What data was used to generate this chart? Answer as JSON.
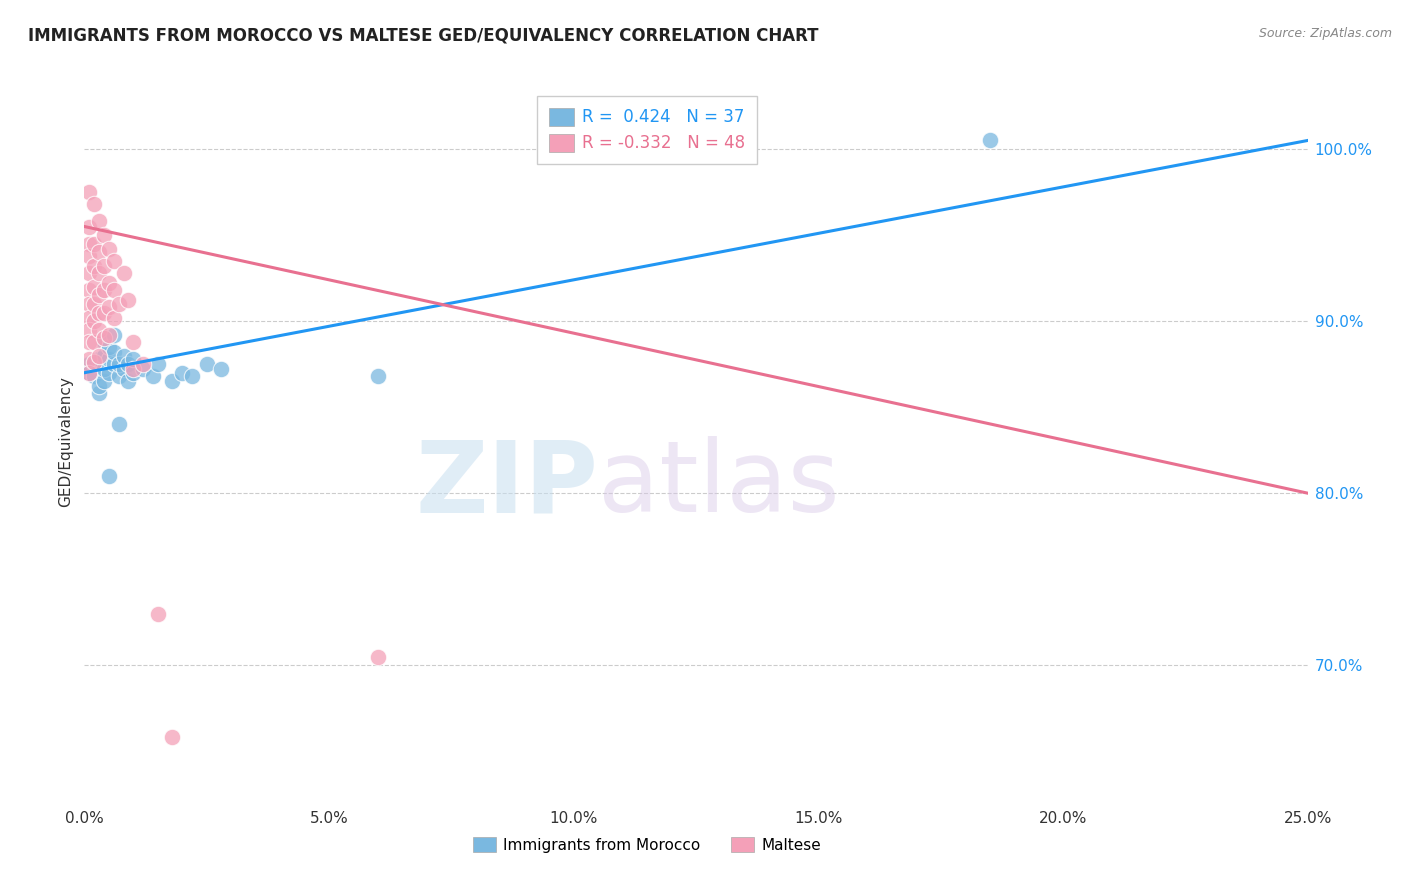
{
  "title": "IMMIGRANTS FROM MOROCCO VS MALTESE GED/EQUIVALENCY CORRELATION CHART",
  "source": "Source: ZipAtlas.com",
  "ylabel": "GED/Equivalency",
  "legend_label1": "Immigrants from Morocco",
  "legend_label2": "Maltese",
  "R1": 0.424,
  "N1": 37,
  "R2": -0.332,
  "N2": 48,
  "xlim": [
    0.0,
    0.25
  ],
  "ylim": [
    0.62,
    1.04
  ],
  "yticks": [
    0.7,
    0.8,
    0.9,
    1.0
  ],
  "xticks": [
    0.0,
    0.05,
    0.1,
    0.15,
    0.2,
    0.25
  ],
  "color_blue": "#7ab8e0",
  "color_pink": "#f4a0b8",
  "color_line_blue": "#2196F3",
  "color_line_pink": "#e87090",
  "watermark_zip": "ZIP",
  "watermark_atlas": "atlas",
  "blue_dots": [
    [
      0.001,
      0.87
    ],
    [
      0.001,
      0.875
    ],
    [
      0.002,
      0.868
    ],
    [
      0.002,
      0.875
    ],
    [
      0.003,
      0.858
    ],
    [
      0.003,
      0.862
    ],
    [
      0.003,
      0.878
    ],
    [
      0.004,
      0.865
    ],
    [
      0.004,
      0.872
    ],
    [
      0.004,
      0.88
    ],
    [
      0.004,
      0.888
    ],
    [
      0.005,
      0.87
    ],
    [
      0.005,
      0.878
    ],
    [
      0.005,
      0.885
    ],
    [
      0.005,
      0.81
    ],
    [
      0.006,
      0.875
    ],
    [
      0.006,
      0.882
    ],
    [
      0.006,
      0.892
    ],
    [
      0.007,
      0.868
    ],
    [
      0.007,
      0.875
    ],
    [
      0.008,
      0.872
    ],
    [
      0.008,
      0.88
    ],
    [
      0.009,
      0.865
    ],
    [
      0.009,
      0.875
    ],
    [
      0.01,
      0.87
    ],
    [
      0.01,
      0.878
    ],
    [
      0.012,
      0.872
    ],
    [
      0.014,
      0.868
    ],
    [
      0.015,
      0.875
    ],
    [
      0.018,
      0.865
    ],
    [
      0.02,
      0.87
    ],
    [
      0.022,
      0.868
    ],
    [
      0.025,
      0.875
    ],
    [
      0.028,
      0.872
    ],
    [
      0.06,
      0.868
    ],
    [
      0.185,
      1.005
    ],
    [
      0.007,
      0.84
    ]
  ],
  "pink_dots": [
    [
      0.001,
      0.975
    ],
    [
      0.001,
      0.955
    ],
    [
      0.001,
      0.945
    ],
    [
      0.001,
      0.938
    ],
    [
      0.001,
      0.928
    ],
    [
      0.001,
      0.918
    ],
    [
      0.001,
      0.91
    ],
    [
      0.001,
      0.902
    ],
    [
      0.001,
      0.895
    ],
    [
      0.001,
      0.888
    ],
    [
      0.001,
      0.878
    ],
    [
      0.001,
      0.87
    ],
    [
      0.002,
      0.968
    ],
    [
      0.002,
      0.945
    ],
    [
      0.002,
      0.932
    ],
    [
      0.002,
      0.92
    ],
    [
      0.002,
      0.91
    ],
    [
      0.002,
      0.9
    ],
    [
      0.002,
      0.888
    ],
    [
      0.002,
      0.876
    ],
    [
      0.003,
      0.958
    ],
    [
      0.003,
      0.94
    ],
    [
      0.003,
      0.928
    ],
    [
      0.003,
      0.915
    ],
    [
      0.003,
      0.905
    ],
    [
      0.003,
      0.895
    ],
    [
      0.003,
      0.88
    ],
    [
      0.004,
      0.95
    ],
    [
      0.004,
      0.932
    ],
    [
      0.004,
      0.918
    ],
    [
      0.004,
      0.905
    ],
    [
      0.004,
      0.89
    ],
    [
      0.005,
      0.942
    ],
    [
      0.005,
      0.922
    ],
    [
      0.005,
      0.908
    ],
    [
      0.005,
      0.892
    ],
    [
      0.006,
      0.935
    ],
    [
      0.006,
      0.918
    ],
    [
      0.006,
      0.902
    ],
    [
      0.007,
      0.91
    ],
    [
      0.008,
      0.928
    ],
    [
      0.009,
      0.912
    ],
    [
      0.01,
      0.888
    ],
    [
      0.01,
      0.872
    ],
    [
      0.012,
      0.875
    ],
    [
      0.015,
      0.73
    ],
    [
      0.06,
      0.705
    ],
    [
      0.018,
      0.658
    ]
  ],
  "blue_trendline": [
    [
      0.0,
      0.87
    ],
    [
      0.25,
      1.005
    ]
  ],
  "pink_trendline": [
    [
      0.0,
      0.955
    ],
    [
      0.25,
      0.8
    ]
  ]
}
